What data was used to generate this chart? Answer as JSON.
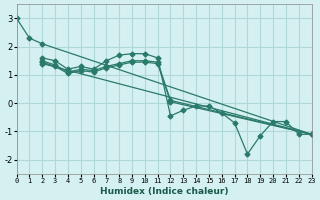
{
  "xlabel": "Humidex (Indice chaleur)",
  "bg_color": "#d4f0f0",
  "grid_color": "#b0d8d8",
  "line_color": "#2a7a6a",
  "xlim": [
    0,
    23
  ],
  "ylim": [
    -2.5,
    3.5
  ],
  "xticks": [
    0,
    1,
    2,
    3,
    4,
    5,
    6,
    7,
    8,
    9,
    10,
    11,
    12,
    13,
    14,
    15,
    16,
    17,
    18,
    19,
    20,
    21,
    22,
    23
  ],
  "yticks": [
    -2,
    -1,
    0,
    1,
    2,
    3
  ],
  "series": [
    {
      "x": [
        0,
        1,
        2,
        23
      ],
      "y": [
        3.0,
        2.3,
        2.1,
        -1.1
      ]
    },
    {
      "x": [
        2,
        3,
        4,
        5,
        6,
        7,
        8,
        9,
        10,
        11,
        12,
        13,
        14,
        15,
        16,
        17,
        18,
        19,
        20,
        21,
        22,
        23
      ],
      "y": [
        1.6,
        1.5,
        1.2,
        1.3,
        1.2,
        1.5,
        1.7,
        1.75,
        1.75,
        1.6,
        -0.45,
        -0.25,
        -0.1,
        -0.1,
        -0.35,
        -0.7,
        -1.8,
        -1.15,
        -0.65,
        -0.65,
        -1.1,
        -1.1
      ]
    },
    {
      "x": [
        2,
        3,
        4,
        5,
        6,
        7,
        8,
        9,
        10,
        11,
        12,
        23
      ],
      "y": [
        1.5,
        1.35,
        1.1,
        1.2,
        1.15,
        1.3,
        1.4,
        1.5,
        1.5,
        1.45,
        0.1,
        -1.1
      ]
    },
    {
      "x": [
        2,
        3,
        4,
        5,
        6,
        7,
        8,
        9,
        10,
        11,
        12,
        23
      ],
      "y": [
        1.45,
        1.3,
        1.05,
        1.15,
        1.1,
        1.25,
        1.35,
        1.45,
        1.45,
        1.4,
        0.05,
        -1.1
      ]
    },
    {
      "x": [
        2,
        23
      ],
      "y": [
        1.4,
        -1.1
      ]
    }
  ]
}
